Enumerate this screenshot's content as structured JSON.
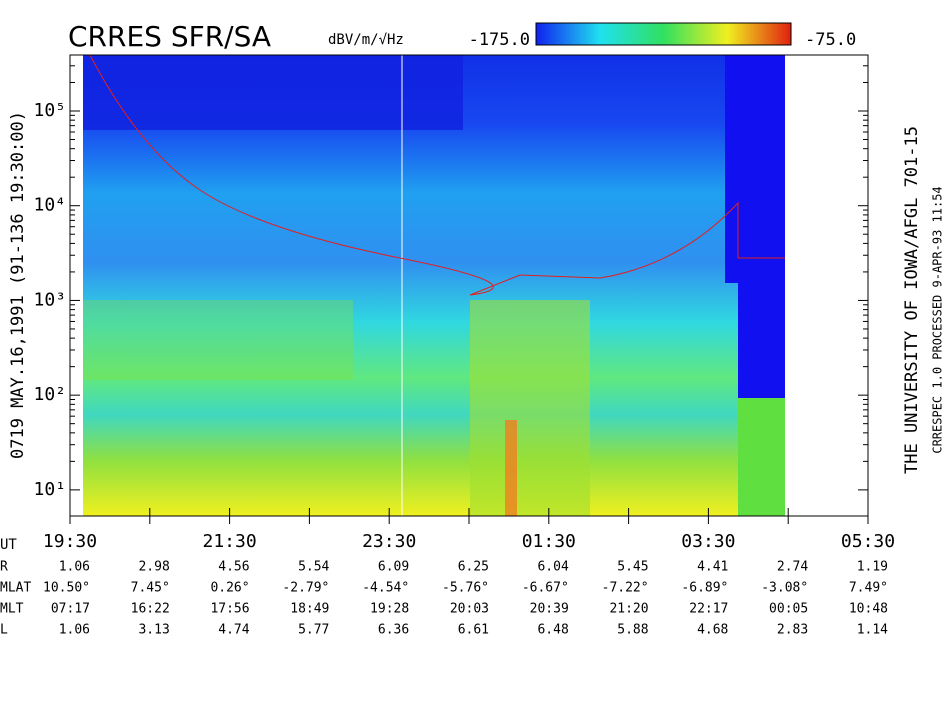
{
  "chart_data": {
    "type": "spectrogram",
    "title": "CRRES SFR/SA",
    "side_label": "0719  MAY.16,1991  (91-136 19:30:00)",
    "right_label": "THE UNIVERSITY OF IOWA/AFGL 701-15",
    "right_label2": "CRRESPEC 1.0  PROCESSED  9-APR-93  11:54",
    "colorbar": {
      "label": "dBV/m/√Hz",
      "min": {
        "value": -175,
        "label": "-175.0"
      },
      "max": {
        "value": -75,
        "label": "-75.0"
      }
    },
    "ylim": [
      5.3,
      390000
    ],
    "log_y": true,
    "yticks": [
      {
        "value": 10,
        "label": "10¹"
      },
      {
        "value": 100,
        "label": "10²"
      },
      {
        "value": 1000,
        "label": "10³"
      },
      {
        "value": 10000,
        "label": "10⁴"
      },
      {
        "value": 100000,
        "label": "10⁵"
      }
    ],
    "x_axis_label": "UT",
    "categories": [
      "19:30",
      null,
      "21:30",
      null,
      "23:30",
      null,
      "01:30",
      null,
      "03:30",
      null,
      "05:30"
    ],
    "ephemeris": [
      {
        "name": "R",
        "values": [
          "1.06",
          "2.98",
          "4.56",
          "5.54",
          "6.09",
          "6.25",
          "6.04",
          "5.45",
          "4.41",
          "2.74",
          "1.19"
        ]
      },
      {
        "name": "MLAT",
        "values": [
          "10.50°",
          "7.45°",
          "0.26°",
          "-2.79°",
          "-4.54°",
          "-5.76°",
          "-6.67°",
          "-7.22°",
          "-6.89°",
          "-3.08°",
          "7.49°"
        ]
      },
      {
        "name": "MLT",
        "values": [
          "07:17",
          "16:22",
          "17:56",
          "18:49",
          "19:28",
          "20:03",
          "20:39",
          "21:20",
          "22:17",
          "00:05",
          "10:48"
        ]
      },
      {
        "name": "L",
        "values": [
          "1.06",
          "3.13",
          "4.74",
          "5.77",
          "6.36",
          "6.61",
          "6.48",
          "5.88",
          "4.68",
          "2.83",
          "1.14"
        ]
      }
    ]
  }
}
